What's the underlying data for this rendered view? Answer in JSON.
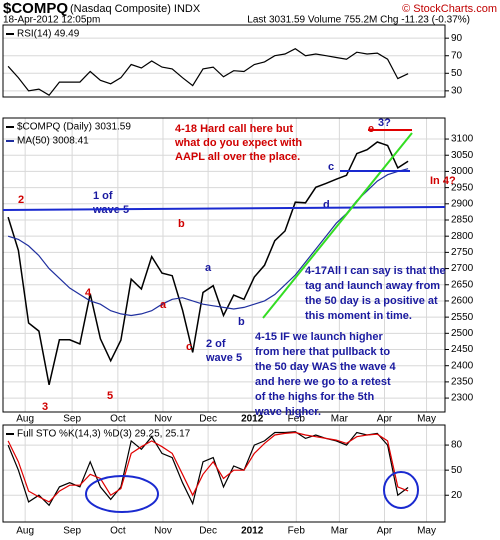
{
  "header": {
    "symbol": "$COMPQ",
    "name": "(Nasdaq Composite) INDX",
    "date": "18-Apr-2012 12:05pm",
    "quote": "Last 3031.59  Volume 755.2M  Chg -11.23 (-0.37%)",
    "source": "© StockCharts.com"
  },
  "chart_data": [
    {
      "type": "line",
      "xlim": [
        -0.5,
        42.6
      ],
      "ylim": [
        23,
        105
      ],
      "yticks": [
        90,
        70,
        50,
        30
      ],
      "grid": true,
      "series": [
        {
          "name": "RSI(14) 49.49",
          "color": "#000000",
          "values": [
            58,
            45,
            30,
            32,
            25,
            40,
            40,
            40,
            52,
            42,
            38,
            45,
            60,
            56,
            64,
            57,
            55,
            45,
            36,
            55,
            57,
            46,
            53,
            52,
            60,
            63,
            70,
            72,
            78,
            70,
            72,
            70,
            68,
            66,
            74,
            72,
            73,
            66,
            44,
            49.49
          ]
        }
      ]
    },
    {
      "type": "line",
      "xlim": [
        -0.5,
        42.6
      ],
      "ylim": [
        2257,
        3165
      ],
      "yticks": [
        2300,
        2350,
        2400,
        2450,
        2500,
        2550,
        2600,
        2650,
        2700,
        2750,
        2800,
        2850,
        2900,
        2950,
        3000,
        3050,
        3100
      ],
      "grid": true,
      "xticks": [
        {
          "value": 1.66,
          "label": "Aug"
        },
        {
          "value": 6.24,
          "label": "Sep"
        },
        {
          "value": 10.7,
          "label": "Oct"
        },
        {
          "value": 15.1,
          "label": "Nov"
        },
        {
          "value": 19.5,
          "label": "Dec"
        },
        {
          "value": 23.8,
          "label": "2012"
        },
        {
          "value": 28.1,
          "label": "Feb"
        },
        {
          "value": 32.3,
          "label": "Mar"
        },
        {
          "value": 36.7,
          "label": "Apr"
        },
        {
          "value": 40.8,
          "label": "May"
        }
      ],
      "series": [
        {
          "name": "$COMPQ (Daily) 3031.59",
          "color": "#000000",
          "values": [
            2859,
            2756,
            2532,
            2507,
            2341,
            2480,
            2480,
            2467,
            2622,
            2483,
            2415,
            2479,
            2667,
            2637,
            2737,
            2686,
            2678,
            2572,
            2441,
            2626,
            2647,
            2555,
            2618,
            2605,
            2674,
            2710,
            2786,
            2816,
            2905,
            2903,
            2951,
            2963,
            2976,
            2988,
            3055,
            3067,
            3091,
            3080,
            3011,
            3031.59
          ]
        },
        {
          "name": "MA(50) 3008.41",
          "color": "#1f2f9f",
          "values": [
            2800,
            2790,
            2770,
            2740,
            2700,
            2670,
            2640,
            2620,
            2600,
            2590,
            2570,
            2560,
            2555,
            2560,
            2570,
            2590,
            2605,
            2610,
            2600,
            2590,
            2585,
            2580,
            2575,
            2580,
            2590,
            2600,
            2620,
            2650,
            2680,
            2720,
            2760,
            2800,
            2840,
            2870,
            2910,
            2940,
            2970,
            2990,
            3000,
            3008.41
          ]
        }
      ],
      "annotations": [
        {
          "lines": [
            "4-18 Hard call here but",
            "what do you expect with",
            "AAPL all over the place."
          ],
          "color": "#d00000"
        },
        {
          "lines": [
            "3?"
          ],
          "color": "#1a1aa0"
        },
        {
          "lines": [
            "e"
          ],
          "color": "#d00000"
        },
        {
          "lines": [
            "c"
          ],
          "color": "#1a1aa0"
        },
        {
          "lines": [
            "d"
          ],
          "color": "#1a1aa0"
        },
        {
          "lines": [
            "In 4?"
          ],
          "color": "#d00000"
        },
        {
          "lines": [
            "2"
          ],
          "color": "#d00000"
        },
        {
          "lines": [
            "1 of",
            "wave 5"
          ],
          "color": "#1a1aa0"
        },
        {
          "lines": [
            "b"
          ],
          "color": "#d00000"
        },
        {
          "lines": [
            "4"
          ],
          "color": "#d00000"
        },
        {
          "lines": [
            "a"
          ],
          "color": "#d00000"
        },
        {
          "lines": [
            "a"
          ],
          "color": "#1a1aa0"
        },
        {
          "lines": [
            "c"
          ],
          "color": "#d00000"
        },
        {
          "lines": [
            "2 of",
            "wave 5"
          ],
          "color": "#1a1aa0"
        },
        {
          "lines": [
            "b"
          ],
          "color": "#1a1aa0"
        },
        {
          "lines": [
            "4-17All I can say is that the",
            "tag and launch away from",
            "the 50 day is a positive at",
            "this moment in time."
          ],
          "color": "#1a1aa0"
        },
        {
          "lines": [
            "4-15 IF we launch higher",
            "from here that pullback to",
            "the 50 day WAS the wave 4",
            "and here we go to a retest",
            "of the highs for the 5th",
            "wave higher."
          ],
          "color": "#1a1aa0"
        },
        {
          "lines": [
            "3"
          ],
          "color": "#d00000"
        },
        {
          "lines": [
            "5"
          ],
          "color": "#d00000"
        }
      ]
    },
    {
      "type": "line",
      "title": "Full STO %K(14,3) %D(3) 29.25, 25.17",
      "xlim": [
        -0.5,
        42.6
      ],
      "ylim": [
        -12,
        104
      ],
      "yticks": [
        80,
        50,
        20
      ],
      "grid": true,
      "xticks": [
        {
          "value": 1.66,
          "label": "Aug"
        },
        {
          "value": 6.24,
          "label": "Sep"
        },
        {
          "value": 10.7,
          "label": "Oct"
        },
        {
          "value": 15.1,
          "label": "Nov"
        },
        {
          "value": 19.5,
          "label": "Dec"
        },
        {
          "value": 23.8,
          "label": "2012"
        },
        {
          "value": 28.1,
          "label": "Feb"
        },
        {
          "value": 32.3,
          "label": "Mar"
        },
        {
          "value": 36.7,
          "label": "Apr"
        },
        {
          "value": 40.8,
          "label": "May"
        }
      ],
      "series": [
        {
          "color": "#000000",
          "values": [
            80,
            50,
            12,
            20,
            8,
            30,
            35,
            30,
            60,
            30,
            15,
            30,
            85,
            75,
            90,
            70,
            65,
            35,
            10,
            60,
            65,
            30,
            55,
            50,
            80,
            85,
            95,
            95,
            96,
            88,
            92,
            88,
            85,
            80,
            95,
            92,
            94,
            80,
            20,
            29.25
          ]
        },
        {
          "color": "#e00000",
          "values": [
            85,
            60,
            25,
            18,
            12,
            25,
            32,
            32,
            45,
            40,
            20,
            28,
            70,
            78,
            85,
            78,
            70,
            45,
            20,
            45,
            60,
            40,
            50,
            50,
            70,
            82,
            92,
            94,
            95,
            92,
            90,
            88,
            86,
            82,
            90,
            92,
            93,
            85,
            30,
            25.17
          ]
        }
      ]
    }
  ]
}
